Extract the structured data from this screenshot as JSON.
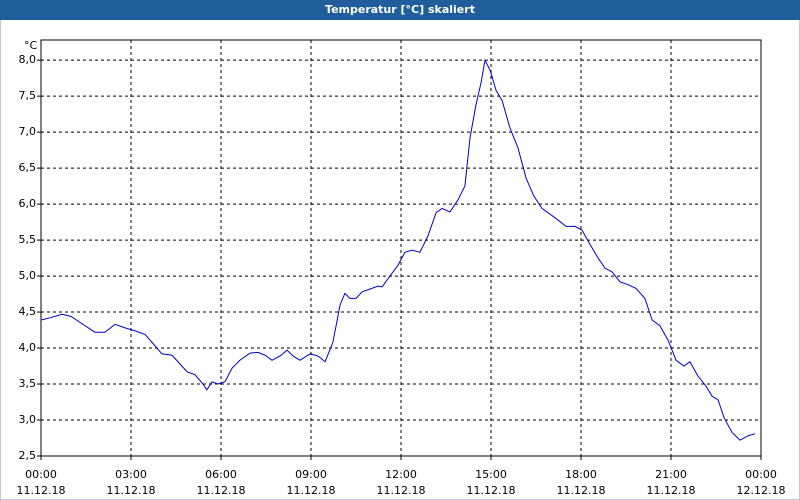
{
  "window_title": "Temperatur [°C] skaliert",
  "chart_data": {
    "type": "line",
    "y_unit": "°C",
    "x": [
      0,
      0.3,
      0.7,
      1.0,
      1.47,
      1.8,
      2.13,
      2.47,
      2.8,
      3.13,
      3.47,
      3.8,
      4.03,
      4.37,
      4.63,
      4.87,
      5.13,
      5.4,
      5.53,
      5.7,
      5.9,
      6.13,
      6.37,
      6.63,
      6.97,
      7.23,
      7.47,
      7.7,
      7.97,
      8.2,
      8.4,
      8.63,
      8.97,
      9.23,
      9.47,
      9.73,
      9.97,
      10.13,
      10.3,
      10.5,
      10.7,
      10.97,
      11.23,
      11.37,
      11.63,
      11.9,
      12.13,
      12.37,
      12.63,
      12.9,
      13.17,
      13.37,
      13.63,
      13.9,
      14.13,
      14.3,
      14.5,
      14.67,
      14.8,
      14.97,
      15.17,
      15.37,
      15.63,
      15.9,
      16.17,
      16.43,
      16.7,
      16.97,
      17.23,
      17.5,
      17.8,
      18.03,
      18.3,
      18.57,
      18.8,
      19.03,
      19.3,
      19.57,
      19.83,
      20.13,
      20.37,
      20.63,
      20.9,
      21.17,
      21.43,
      21.63,
      21.9,
      22.17,
      22.37,
      22.57,
      22.77,
      23.03,
      23.3,
      23.57,
      23.8
    ],
    "series": [
      {
        "color": "#0000cc",
        "values": [
          4.39,
          4.42,
          4.47,
          4.44,
          4.31,
          4.22,
          4.22,
          4.33,
          4.28,
          4.24,
          4.19,
          4.03,
          3.92,
          3.9,
          3.78,
          3.67,
          3.63,
          3.5,
          3.42,
          3.53,
          3.5,
          3.53,
          3.72,
          3.83,
          3.93,
          3.94,
          3.9,
          3.83,
          3.89,
          3.97,
          3.89,
          3.83,
          3.92,
          3.89,
          3.81,
          4.08,
          4.6,
          4.76,
          4.69,
          4.69,
          4.78,
          4.82,
          4.86,
          4.85,
          5.0,
          5.15,
          5.33,
          5.36,
          5.33,
          5.56,
          5.88,
          5.94,
          5.89,
          6.06,
          6.25,
          6.92,
          7.38,
          7.69,
          8.0,
          7.86,
          7.58,
          7.44,
          7.06,
          6.78,
          6.36,
          6.11,
          5.94,
          5.86,
          5.78,
          5.69,
          5.69,
          5.64,
          5.44,
          5.25,
          5.11,
          5.06,
          4.92,
          4.88,
          4.83,
          4.69,
          4.39,
          4.31,
          4.11,
          3.83,
          3.75,
          3.81,
          3.61,
          3.47,
          3.33,
          3.28,
          3.03,
          2.83,
          2.72,
          2.78,
          2.81
        ]
      }
    ],
    "xlim": [
      0,
      24
    ],
    "xticks": [
      {
        "value": 0,
        "label": "00:00",
        "date": "11.12.18"
      },
      {
        "value": 3,
        "label": "03:00",
        "date": "11.12.18"
      },
      {
        "value": 6,
        "label": "06:00",
        "date": "11.12.18"
      },
      {
        "value": 9,
        "label": "09:00",
        "date": "11.12.18"
      },
      {
        "value": 12,
        "label": "12:00",
        "date": "11.12.18"
      },
      {
        "value": 15,
        "label": "15:00",
        "date": "11.12.18"
      },
      {
        "value": 18,
        "label": "18:00",
        "date": "11.12.18"
      },
      {
        "value": 21,
        "label": "21:00",
        "date": "11.12.18"
      },
      {
        "value": 24,
        "label": "00:00",
        "date": "12.12.18"
      }
    ],
    "ylim": [
      2.5,
      8.28
    ],
    "yticks": [
      {
        "value": 2.5,
        "label": "2,5"
      },
      {
        "value": 3,
        "label": "3,0"
      },
      {
        "value": 3.5,
        "label": "3,5"
      },
      {
        "value": 4,
        "label": "4,0"
      },
      {
        "value": 4.5,
        "label": "4,5"
      },
      {
        "value": 5,
        "label": "5,0"
      },
      {
        "value": 5.5,
        "label": "5,5"
      },
      {
        "value": 6,
        "label": "6,0"
      },
      {
        "value": 6.5,
        "label": "6,5"
      },
      {
        "value": 7,
        "label": "7,0"
      },
      {
        "value": 7.5,
        "label": "7,5"
      },
      {
        "value": 8,
        "label": "8,0"
      }
    ],
    "grid": true
  }
}
